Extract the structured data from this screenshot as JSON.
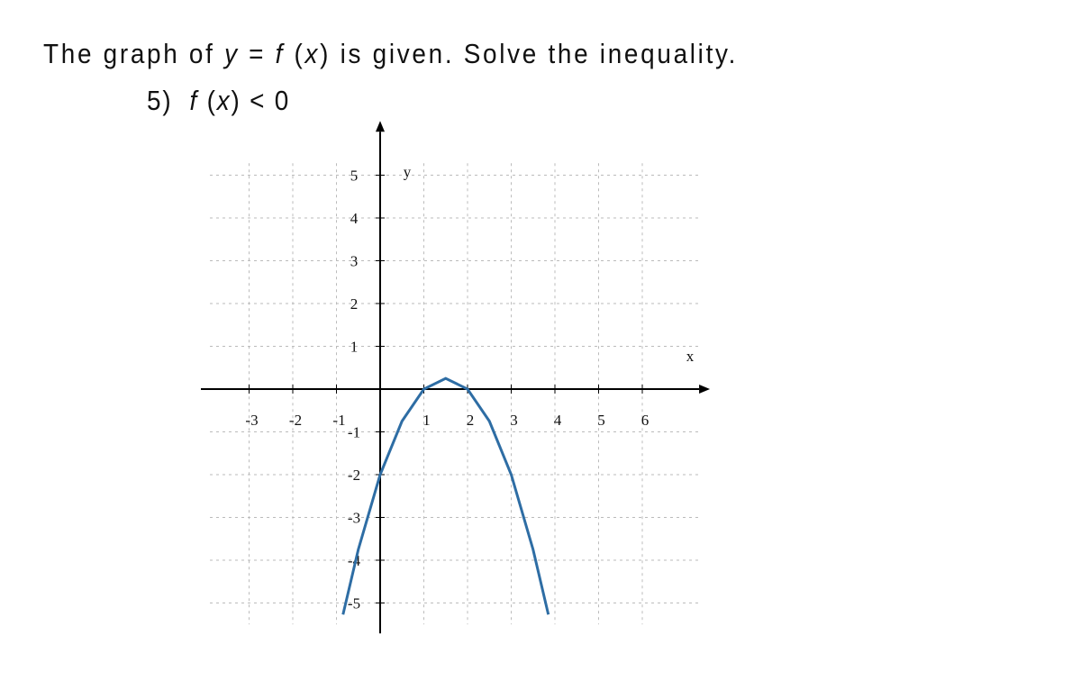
{
  "problem": {
    "intro": [
      {
        "text": "The graph of ",
        "italic": false
      },
      {
        "text": "y",
        "italic": true
      },
      {
        "text": " = ",
        "italic": false
      },
      {
        "text": "f",
        "italic": true
      },
      {
        "text": " (",
        "italic": false
      },
      {
        "text": "x",
        "italic": true
      },
      {
        "text": ") is given. Solve the inequality.",
        "italic": false
      }
    ],
    "item": [
      {
        "text": "5)  ",
        "italic": false
      },
      {
        "text": "f",
        "italic": true
      },
      {
        "text": " (",
        "italic": false
      },
      {
        "text": "x",
        "italic": true
      },
      {
        "text": ") < 0",
        "italic": false
      }
    ]
  },
  "chart_data": {
    "type": "line",
    "x_label": "x",
    "y_label": "y",
    "xlim": [
      -4,
      7.3
    ],
    "ylim": [
      -5.5,
      5.7
    ],
    "xticks": [
      -3,
      -2,
      -1,
      1,
      2,
      3,
      4,
      5,
      6
    ],
    "yticks": [
      -5,
      -4,
      -3,
      -2,
      -1,
      1,
      2,
      3,
      4,
      5
    ],
    "grid": true,
    "x": [
      -0.85,
      -0.5,
      0,
      0.5,
      1,
      1.5,
      2,
      2.5,
      3,
      3.5,
      3.85
    ],
    "series": [
      {
        "color": "#2e6da4",
        "values": [
          -5.27,
          -3.75,
          -2,
          -0.75,
          0,
          0.25,
          0,
          -0.75,
          -2,
          -3.75,
          -5.27
        ]
      }
    ]
  }
}
